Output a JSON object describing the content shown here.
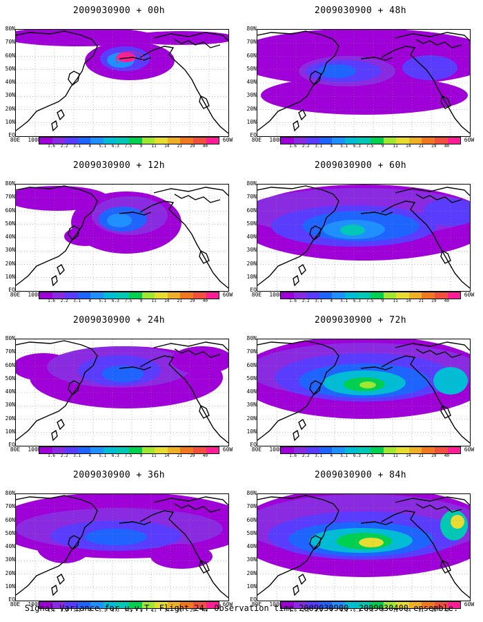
{
  "footer": "Signal Variance for u,v,T. Flight 24. Observation time 2009030900. 2009030400 ensemble.",
  "lat_labels": [
    "80N",
    "70N",
    "60N",
    "50N",
    "40N",
    "30N",
    "20N",
    "10N",
    "EQ"
  ],
  "lon_labels": [
    "80E",
    "100E",
    "120E",
    "140E",
    "160E",
    "180",
    "160W",
    "140W",
    "120W",
    "100W",
    "80W",
    "60W"
  ],
  "colorbar": {
    "labels": [
      "1.6",
      "2.2",
      "3.1",
      "4",
      "5.1",
      "6.3",
      "7.5",
      "9",
      "11",
      "14",
      "21",
      "29",
      "40"
    ],
    "colors": [
      "#a000d8",
      "#8a2be2",
      "#5a3cff",
      "#1e64ff",
      "#1e90ff",
      "#00bcd4",
      "#00c8b4",
      "#00d050",
      "#a0e632",
      "#e6dc32",
      "#f0af28",
      "#f07820",
      "#f0503c",
      "#ff1e96"
    ]
  },
  "panels": [
    {
      "title": "2009030900 + 00h"
    },
    {
      "title": "2009030900 + 48h"
    },
    {
      "title": "2009030900 + 12h"
    },
    {
      "title": "2009030900 + 60h"
    },
    {
      "title": "2009030900 + 24h"
    },
    {
      "title": "2009030900 + 72h"
    },
    {
      "title": "2009030900 + 36h"
    },
    {
      "title": "2009030900 + 84h"
    }
  ]
}
